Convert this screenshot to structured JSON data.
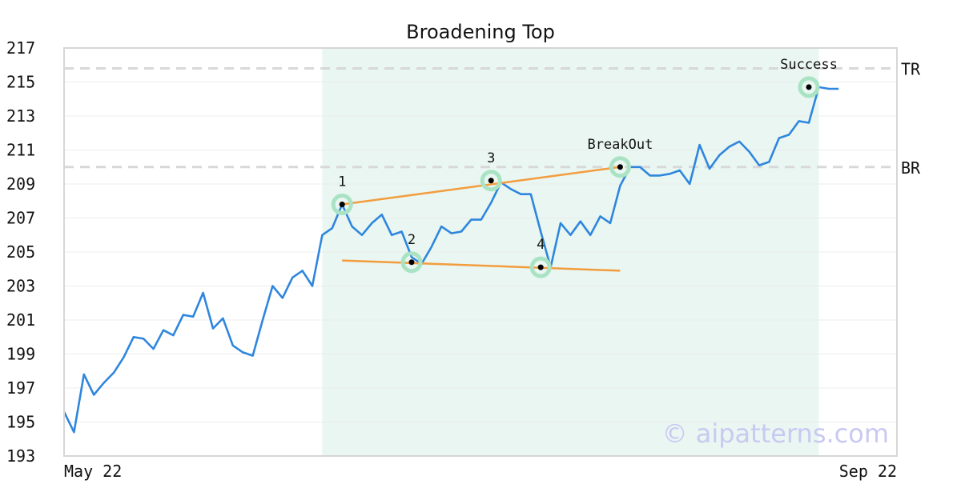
{
  "chart_data": {
    "type": "line",
    "title": "Broadening Top",
    "xlabel": "",
    "ylabel": "",
    "ylim": [
      193,
      217
    ],
    "yticks": [
      193,
      195,
      197,
      199,
      201,
      203,
      205,
      207,
      209,
      211,
      213,
      215,
      217
    ],
    "x_tick_labels": [
      {
        "index": 0,
        "label": "May 22"
      },
      {
        "index": 75,
        "label": "Sep 22"
      }
    ],
    "grid": true,
    "colors": {
      "price": "#2e86de",
      "trendline": "#f39c3d",
      "highlight": "#a9e3c4",
      "pattern_zone": "#e9f6f1",
      "reference": "#d8d8d8"
    },
    "series": [
      {
        "values": [
          195.6,
          194.4,
          197.8,
          196.6,
          197.3,
          197.9,
          198.8,
          200.0,
          199.9,
          199.3,
          200.4,
          200.1,
          201.3,
          201.2,
          202.6,
          200.5,
          201.1,
          199.5,
          199.1,
          198.9,
          201.0,
          203.0,
          202.3,
          203.5,
          203.9,
          203.0,
          206.0,
          206.4,
          207.8,
          206.5,
          206.0,
          206.7,
          207.2,
          206.0,
          206.2,
          204.7,
          204.3,
          205.3,
          206.5,
          206.1,
          206.2,
          206.9,
          206.9,
          207.9,
          209.1,
          208.7,
          208.4,
          208.4,
          206.2,
          204.1,
          206.7,
          206.0,
          206.8,
          206.0,
          207.1,
          206.7,
          208.9,
          210.0,
          210.0,
          209.5,
          209.5,
          209.6,
          209.8,
          209.0,
          211.3,
          209.9,
          210.7,
          211.2,
          211.5,
          210.9,
          210.1,
          210.3,
          211.7,
          211.9,
          212.7,
          212.6,
          214.7,
          214.6,
          214.6
        ]
      }
    ],
    "pattern_zone": {
      "start_index": 26,
      "end_index": 76
    },
    "reference_lines": [
      {
        "label": "TR",
        "value": 215.8
      },
      {
        "label": "BR",
        "value": 210.0
      }
    ],
    "trendlines": [
      {
        "from": {
          "index": 28,
          "value": 207.8
        },
        "to": {
          "index": 56,
          "value": 210.0
        }
      },
      {
        "from": {
          "index": 28,
          "value": 204.5
        },
        "to": {
          "index": 56,
          "value": 203.9
        }
      }
    ],
    "annotations": [
      {
        "label": "1",
        "index": 28,
        "value": 207.8,
        "label_pos": "above"
      },
      {
        "label": "2",
        "index": 35,
        "value": 204.4,
        "label_pos": "above"
      },
      {
        "label": "3",
        "index": 43,
        "value": 209.2,
        "label_pos": "above"
      },
      {
        "label": "4",
        "index": 48,
        "value": 204.1,
        "label_pos": "above"
      },
      {
        "label": "BreakOut",
        "index": 56,
        "value": 210.0,
        "label_pos": "above"
      },
      {
        "label": "Success",
        "index": 75,
        "value": 214.7,
        "label_pos": "above"
      }
    ],
    "watermark": "© aipatterns.com"
  }
}
